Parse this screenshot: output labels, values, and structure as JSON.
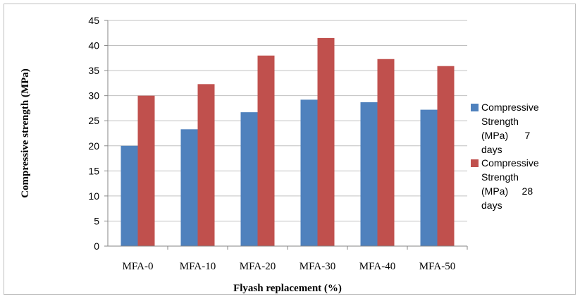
{
  "chart_data": {
    "type": "bar",
    "title": "",
    "xlabel": "Flyash replacement (%)",
    "ylabel": "Compressive strength (MPa)",
    "ylim": [
      0,
      45
    ],
    "yticks": [
      0,
      5,
      10,
      15,
      20,
      25,
      30,
      35,
      40,
      45
    ],
    "categories": [
      "MFA-0",
      "MFA-10",
      "MFA-20",
      "MFA-30",
      "MFA-40",
      "MFA-50"
    ],
    "series": [
      {
        "name": "Compressive Strength (MPa) 7 days",
        "legend_lines": [
          "Compressive",
          "Strength",
          "(MPa)      7",
          "days"
        ],
        "color": "#4f81bd",
        "values": [
          20.0,
          23.3,
          26.7,
          29.2,
          28.7,
          27.2
        ]
      },
      {
        "name": "Compressive Strength (MPa) 28 days",
        "legend_lines": [
          "Compressive",
          "Strength",
          "(MPa)     28",
          "days"
        ],
        "color": "#c0504d",
        "values": [
          30.0,
          32.3,
          38.0,
          41.5,
          37.3,
          35.9
        ]
      }
    ],
    "legend_position": "right",
    "grid": true
  }
}
